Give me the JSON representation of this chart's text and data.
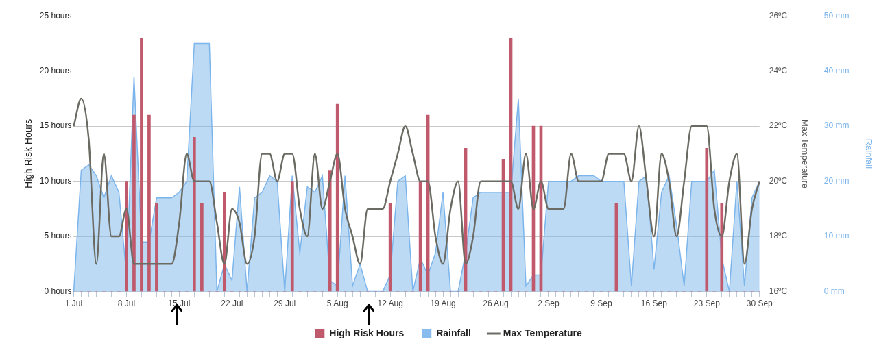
{
  "chart_data": {
    "type": "bar",
    "categories": [
      "1 Jul",
      null,
      null,
      null,
      null,
      null,
      null,
      "8 Jul",
      null,
      null,
      null,
      null,
      null,
      null,
      "15 Jul",
      null,
      null,
      null,
      null,
      null,
      null,
      "22 Jul",
      null,
      null,
      null,
      null,
      null,
      null,
      "29 Jul",
      null,
      null,
      null,
      null,
      null,
      null,
      "5 Aug",
      null,
      null,
      null,
      null,
      null,
      null,
      "12 Aug",
      null,
      null,
      null,
      null,
      null,
      null,
      "19 Aug",
      null,
      null,
      null,
      null,
      null,
      null,
      "26 Aug",
      null,
      null,
      null,
      null,
      null,
      null,
      "2 Sep",
      null,
      null,
      null,
      null,
      null,
      null,
      "9 Sep",
      null,
      null,
      null,
      null,
      null,
      null,
      "16 Sep",
      null,
      null,
      null,
      null,
      null,
      null,
      "23 Sep",
      null,
      null,
      null,
      null,
      null,
      null,
      "30 Sep"
    ],
    "series": [
      {
        "name": "High Risk Hours",
        "color": "#c0596b",
        "values": [
          0,
          0,
          0,
          0,
          0,
          0,
          0,
          10,
          16,
          23,
          16,
          8,
          0,
          0,
          0,
          0,
          14,
          8,
          0,
          0,
          9,
          0,
          0,
          0,
          0,
          0,
          0,
          0,
          0,
          10,
          0,
          0,
          0,
          0,
          11,
          17,
          0,
          0,
          0,
          0,
          0,
          0,
          8,
          0,
          0,
          0,
          10,
          16,
          0,
          0,
          0,
          0,
          13,
          0,
          0,
          0,
          0,
          12,
          23,
          0,
          0,
          15,
          15,
          0,
          0,
          0,
          0,
          0,
          0,
          0,
          0,
          0,
          8,
          0,
          0,
          0,
          0,
          0,
          0,
          0,
          0,
          0,
          0,
          0,
          13,
          0,
          8,
          0,
          0,
          0,
          0,
          0
        ]
      },
      {
        "name": "Rainfall",
        "type": "area",
        "axis": "y3",
        "color": "#7cb5ec",
        "values": [
          0,
          22,
          23,
          21,
          17,
          21,
          18,
          3,
          39,
          9,
          9,
          17,
          17,
          17,
          18,
          20,
          45,
          45,
          45,
          0,
          5,
          2,
          19,
          0,
          17,
          18,
          21,
          20,
          0,
          21,
          7,
          19,
          18,
          21,
          2,
          1,
          21,
          1,
          5,
          0,
          0,
          0,
          3,
          20,
          21,
          0,
          6,
          3,
          7,
          18,
          0,
          0,
          7,
          17,
          18,
          18,
          18,
          18,
          18,
          35,
          1,
          3,
          3,
          20,
          20,
          20,
          20,
          21,
          21,
          21,
          20,
          20,
          20,
          20,
          1,
          20,
          21,
          4,
          18,
          21,
          12,
          1,
          20,
          20,
          20,
          22,
          6,
          0,
          20,
          1,
          17,
          20
        ]
      },
      {
        "name": "Max Temperature",
        "type": "line",
        "axis": "y2",
        "color": "#6b6b63",
        "values": [
          22,
          23,
          21.5,
          17,
          21,
          18,
          18,
          19,
          17,
          17,
          17,
          17,
          17,
          17,
          18.5,
          21,
          20,
          20,
          20,
          18.5,
          17,
          19,
          18.5,
          17,
          18,
          21,
          21,
          20,
          21,
          21,
          19,
          18,
          21,
          19,
          20,
          21,
          19,
          18,
          17,
          19,
          19,
          19,
          20,
          21,
          22,
          21,
          20,
          20,
          18,
          17,
          19,
          20,
          17,
          18,
          20,
          20,
          20,
          20,
          20,
          19,
          21,
          19,
          20,
          19,
          19,
          19,
          21,
          20,
          20,
          20,
          20,
          21,
          21,
          21,
          20,
          22,
          20,
          18,
          21,
          20,
          18,
          20,
          22,
          22,
          22,
          19,
          18,
          20,
          21,
          17,
          19,
          20
        ]
      }
    ],
    "ylabel": "High Risk Hours",
    "y2label": "Max Temperature",
    "y3label": "Rainfall",
    "ylim": [
      0,
      25
    ],
    "yticks": [
      {
        "value": 0,
        "label": "0 hours"
      },
      {
        "value": 5,
        "label": "5 hours"
      },
      {
        "value": 10,
        "label": "10 hours"
      },
      {
        "value": 15,
        "label": "15 hours"
      },
      {
        "value": 20,
        "label": "20 hours"
      },
      {
        "value": 25,
        "label": "25 hours"
      }
    ],
    "y2lim": [
      16,
      26
    ],
    "y2ticks": [
      {
        "value": 16,
        "label": "16ºC"
      },
      {
        "value": 18,
        "label": "18ºC"
      },
      {
        "value": 20,
        "label": "20ºC"
      },
      {
        "value": 22,
        "label": "22ºC"
      },
      {
        "value": 24,
        "label": "24ºC"
      },
      {
        "value": 26,
        "label": "26ºC"
      }
    ],
    "y3lim": [
      0,
      50
    ],
    "y3ticks": [
      {
        "value": 0,
        "label": "0 mm"
      },
      {
        "value": 10,
        "label": "10 mm"
      },
      {
        "value": 20,
        "label": "20 mm"
      },
      {
        "value": 30,
        "label": "30 mm"
      },
      {
        "value": 40,
        "label": "40 mm"
      },
      {
        "value": 50,
        "label": "50 mm"
      }
    ],
    "grid": "y",
    "legend": "bottom",
    "marker": "none"
  }
}
